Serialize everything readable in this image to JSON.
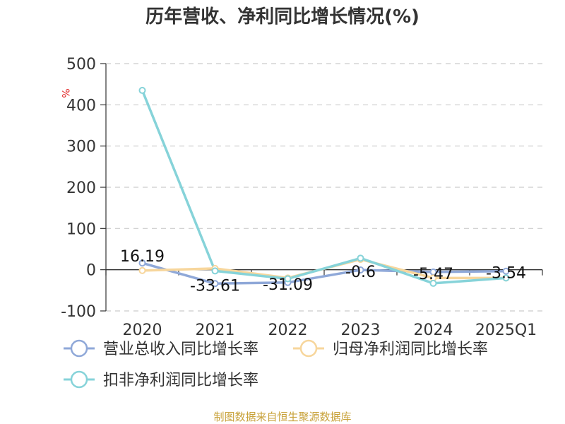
{
  "chart_data": {
    "type": "line",
    "title": "历年营收、净利同比增长情况(%)",
    "ylabel": "%",
    "categories": [
      "2020",
      "2021",
      "2022",
      "2023",
      "2024",
      "2025Q1"
    ],
    "ylim": [
      -100,
      500
    ],
    "yticks": [
      -100,
      0,
      100,
      200,
      300,
      400,
      500
    ],
    "grid": true,
    "legend_position": "bottom",
    "series": [
      {
        "name": "营业总收入同比增长率",
        "color": "#8fa8d8",
        "values": [
          16.19,
          -33.61,
          -31.09,
          -0.6,
          -5.47,
          -3.54
        ],
        "labels": [
          "16.19",
          "-33.61",
          "-31.09",
          "-0.6",
          "-5.47",
          "-3.54"
        ]
      },
      {
        "name": "归母净利润同比增长率",
        "color": "#f7d69c",
        "values": [
          -2,
          3,
          -20,
          25,
          -20,
          -20
        ]
      },
      {
        "name": "扣非净利润同比增长率",
        "color": "#86d3d9",
        "values": [
          435,
          -3,
          -22,
          28,
          -33,
          -20
        ]
      }
    ],
    "source": "制图数据来自恒生聚源数据库"
  }
}
